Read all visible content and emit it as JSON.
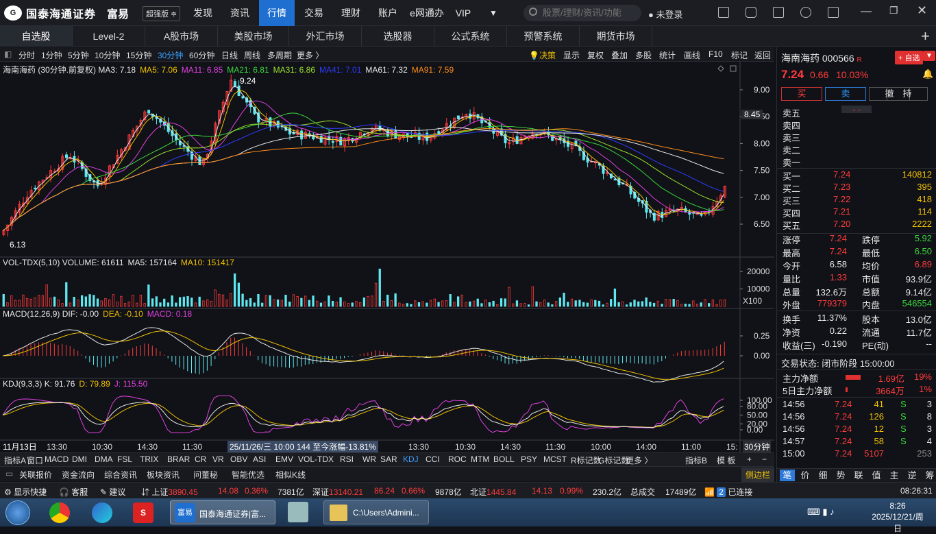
{
  "app": {
    "logo_cn": "国泰海通证券",
    "logo_en": "GUOTAI HAITONG SECURITIES",
    "brand": "富易",
    "brand_en": "RICH EASY",
    "edition": "超强版 ≑"
  },
  "nav": [
    "发现",
    "资讯",
    "行情",
    "交易",
    "理财",
    "账户",
    "e网通办",
    "VIP"
  ],
  "search_placeholder": "股票/理财/资讯/功能",
  "login": "未登录",
  "tabs": [
    "自选股",
    "Level-2",
    "A股市场",
    "美股市场",
    "外汇市场",
    "选股器",
    "公式系统",
    "预警系统",
    "期货市场"
  ],
  "periods": [
    "分时",
    "1分钟",
    "5分钟",
    "10分钟",
    "15分钟",
    "30分钟",
    "60分钟",
    "日线",
    "周线",
    "多周期",
    "更多 〉"
  ],
  "tools": [
    "决策",
    "显示",
    "复权",
    "叠加",
    "多股",
    "统计",
    "画线",
    "F10",
    "标记",
    "返回"
  ],
  "legend_main": {
    "name": "海南海药 (30分钟.前复权)",
    "items": [
      [
        "MA3: 7.18",
        "#e8e8e8"
      ],
      [
        "MA5: 7.06",
        "#f0c000"
      ],
      [
        "MA11: 6.85",
        "#e040e0"
      ],
      [
        "MA21: 6.81",
        "#3cd63c"
      ],
      [
        "MA31: 6.86",
        "#9ae02e"
      ],
      [
        "MA41: 7.01",
        "#2e3cff"
      ],
      [
        "MA61: 7.32",
        "#e8e8e8"
      ],
      [
        "MA91: 7.59",
        "#ff8c1a"
      ]
    ]
  },
  "legend_vol": {
    "name": "VOL-TDX(5,10)",
    "items": [
      [
        "VOLUME: 61611",
        "#e8e8e8"
      ],
      [
        "MA5: 157164",
        "#e8e8e8"
      ],
      [
        "MA10: 151417",
        "#f0c000"
      ]
    ]
  },
  "legend_macd": {
    "name": "MACD(12,26,9)",
    "items": [
      [
        "DIF: -0.00",
        "#e8e8e8"
      ],
      [
        "DEA: -0.10",
        "#f0c000"
      ],
      [
        "MACD: 0.18",
        "#e040e0"
      ]
    ]
  },
  "legend_kdj": {
    "name": "KDJ(9,3,3)",
    "items": [
      [
        "K: 91.76",
        "#e8e8e8"
      ],
      [
        "D: 79.89",
        "#f0c000"
      ],
      [
        "J: 115.50",
        "#e040e0"
      ]
    ]
  },
  "price_axis": [
    "9.00",
    "8.50",
    "8.00",
    "7.50",
    "7.00",
    "6.50"
  ],
  "price_mark": "8.45",
  "hi_label": "9.24",
  "lo_label": "6.13",
  "vol_axis": [
    "20000",
    "10000"
  ],
  "vol_unit": "X100",
  "macd_axis": [
    "0.25",
    "0.00"
  ],
  "kdj_axis": [
    "100.00",
    "80.00",
    "50.00",
    "20.00",
    "0.00"
  ],
  "time_axis": [
    "11月13日",
    "13:30",
    "10:30",
    "14:30",
    "11:30",
    "13:30",
    "10:30",
    "14:30",
    "11:30",
    "10:00",
    "14:00",
    "11:00",
    "15:"
  ],
  "time_tip": "25/11/26/三 10:00 144 至今涨幅-13.81%",
  "period_label": "30分钟",
  "ibar": [
    "指标A",
    "窗口",
    "MACD",
    "DMI",
    "DMA",
    "FSL",
    "TRIX",
    "BRAR",
    "CR",
    "VR",
    "OBV",
    "ASI",
    "EMV",
    "VOL-TDX",
    "RSI",
    "WR",
    "SAR",
    "KDJ",
    "CCI",
    "ROC",
    "MTM",
    "BOLL",
    "PSY",
    "MCST",
    "R标记数",
    "G标记数",
    "更多 〉"
  ],
  "ibar_right": [
    "指标B",
    "模 板",
    "+",
    "−"
  ],
  "ibar2": [
    "关联报价",
    "资金流向",
    "综合资讯",
    "板块资讯",
    "问董秘",
    "智能优选",
    "相似K线"
  ],
  "ibar2_right": "侧边栏",
  "stock": {
    "name": "海南海药",
    "code": "000566",
    "price": "7.24",
    "chg": "0.66",
    "pct": "10.03%",
    "add": "+ 自选"
  },
  "trade_btns": [
    "买",
    "卖",
    "撤",
    "持"
  ],
  "asks": [
    "卖五",
    "卖四",
    "卖三",
    "卖二",
    "卖一"
  ],
  "bids": [
    [
      "买一",
      "7.24",
      "140812"
    ],
    [
      "买二",
      "7.23",
      "395"
    ],
    [
      "买三",
      "7.22",
      "418"
    ],
    [
      "买四",
      "7.21",
      "114"
    ],
    [
      "买五",
      "7.20",
      "2222"
    ]
  ],
  "stats": [
    [
      "涨停",
      "7.24",
      "red",
      "跌停",
      "5.92",
      "grn"
    ],
    [
      "最高",
      "7.24",
      "red",
      "最低",
      "6.50",
      "grn"
    ],
    [
      "今开",
      "6.58",
      "wht",
      "均价",
      "6.89",
      "red"
    ],
    [
      "量比",
      "1.33",
      "red",
      "市值",
      "93.9亿",
      "wht"
    ],
    [
      "总量",
      "132.6万",
      "wht",
      "总额",
      "9.14亿",
      "wht"
    ],
    [
      "外盘",
      "779379",
      "red",
      "内盘",
      "546554",
      "grn"
    ]
  ],
  "stats2": [
    [
      "换手",
      "11.37%",
      "股本",
      "13.0亿"
    ],
    [
      "净资",
      "0.22",
      "流通",
      "11.7亿"
    ],
    [
      "收益(三)",
      "-0.190",
      "PE(动)",
      "--"
    ]
  ],
  "trade_status": "交易状态: 闭市阶段 15:00:00",
  "flow": [
    [
      "主力净额",
      "1.69亿",
      "19%"
    ],
    [
      "5日主力净额",
      "3664万",
      "1%"
    ]
  ],
  "ticks": [
    [
      "14:56",
      "7.24",
      "41",
      "S",
      "3"
    ],
    [
      "14:56",
      "7.24",
      "126",
      "S",
      "8"
    ],
    [
      "14:56",
      "7.24",
      "12",
      "S",
      "3"
    ],
    [
      "14:57",
      "7.24",
      "58",
      "S",
      "4"
    ],
    [
      "15:00",
      "7.24",
      "5107",
      "",
      "253"
    ]
  ],
  "rtabs": [
    "笔",
    "价",
    "细",
    "势",
    "联",
    "值",
    "主",
    "逆",
    "筹"
  ],
  "statusbar": {
    "quick": "显示快捷",
    "service": "客服",
    "advice": "建议",
    "sh": "上证",
    "sh_v": "3890.45",
    "sh_c": "14.08",
    "sh_p": "0.36%",
    "sh_a": "7381亿",
    "sz": "深证",
    "sz_v": "13140.21",
    "sz_c": "86.24",
    "sz_p": "0.66%",
    "sz_a": "9878亿",
    "bz": "北证",
    "bz_v": "1445.84",
    "bz_c": "14.13",
    "bz_p": "0.99%",
    "bz_a": "230.2亿",
    "total": "总成交",
    "total_v": "17489亿",
    "conn_n": "2",
    "conn": "已连接",
    "time": "08:26:31"
  },
  "taskbar": {
    "app1": "国泰海通证券|富...",
    "app2": "C:\\Users\\Admini...",
    "clock": "8:26",
    "date": "2025/12/21/周日"
  }
}
